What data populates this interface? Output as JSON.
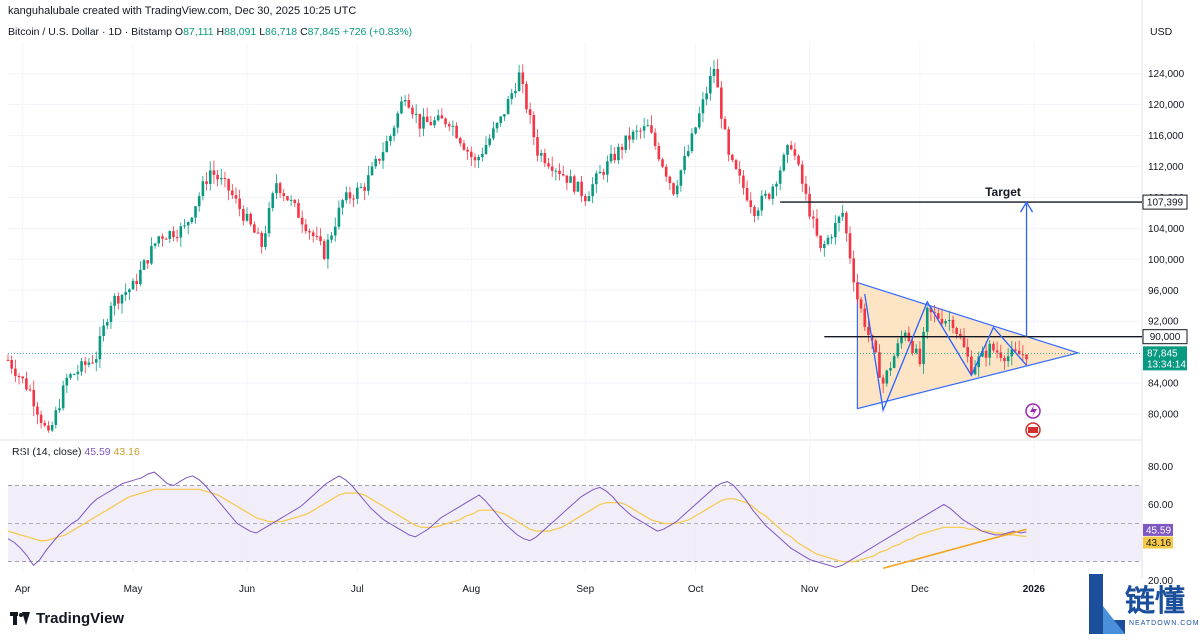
{
  "header": {
    "publisher": "kanguhalubale created with TradingView.com, Dec 30, 2025 10:25 UTC",
    "symbol": "Bitcoin / U.S. Dollar · 1D · Bitstamp",
    "o_label": "O",
    "o_value": "87,111",
    "h_label": "H",
    "h_value": "88,091",
    "l_label": "L",
    "l_value": "86,718",
    "c_label": "C",
    "c_value": "87,845",
    "change": "+726 (+0.83%)"
  },
  "currency": "USD",
  "rsi_header": {
    "label": "RSI (14, close)",
    "rsi_value": "45.59",
    "ma_value": "43.16"
  },
  "footer": {
    "logo_text": "TradingView"
  },
  "watermark": {
    "cn_text": "链懂",
    "en_text": "NEATDOWN.COM"
  },
  "colors": {
    "up": "#089981",
    "down": "#f23645",
    "rsi": "#7e57c2",
    "rsi_ma": "#f7c948",
    "pattern_fill": "#fce3c1",
    "pattern_line": "#2962ff",
    "trend": "#f7a21b"
  },
  "chart_data": [
    {
      "type": "candlestick",
      "title": "Bitcoin / U.S. Dollar · 1D · Bitstamp",
      "ylabel": "USD",
      "y_ticks": [
        124000,
        120000,
        116000,
        112000,
        108000,
        104000,
        100000,
        96000,
        92000,
        88000,
        84000,
        80000
      ],
      "ylim": [
        76900,
        128100
      ],
      "x_ticks": [
        "Apr",
        "May",
        "Jun",
        "Jul",
        "Aug",
        "Sep",
        "Oct",
        "Nov",
        "Dec",
        "2026"
      ],
      "price_path": {
        "start": "2025-03-28",
        "end": "2025-12-30",
        "anchors": [
          [
            "2025-03-28",
            87000
          ],
          [
            "2025-04-03",
            83000
          ],
          [
            "2025-04-08",
            77000
          ],
          [
            "2025-04-13",
            84500
          ],
          [
            "2025-04-21",
            87500
          ],
          [
            "2025-04-25",
            94500
          ],
          [
            "2025-05-01",
            96500
          ],
          [
            "2025-05-08",
            103000
          ],
          [
            "2025-05-15",
            104000
          ],
          [
            "2025-05-22",
            111500
          ],
          [
            "2025-05-27",
            109000
          ],
          [
            "2025-06-05",
            101800
          ],
          [
            "2025-06-09",
            110000
          ],
          [
            "2025-06-17",
            104500
          ],
          [
            "2025-06-22",
            100800
          ],
          [
            "2025-06-27",
            107500
          ],
          [
            "2025-07-03",
            109500
          ],
          [
            "2025-07-10",
            116000
          ],
          [
            "2025-07-14",
            121500
          ],
          [
            "2025-07-18",
            117500
          ],
          [
            "2025-07-26",
            118000
          ],
          [
            "2025-08-02",
            112500
          ],
          [
            "2025-08-09",
            118000
          ],
          [
            "2025-08-14",
            123800
          ],
          [
            "2025-08-19",
            114000
          ],
          [
            "2025-08-25",
            111500
          ],
          [
            "2025-09-01",
            108200
          ],
          [
            "2025-09-05",
            111000
          ],
          [
            "2025-09-13",
            115800
          ],
          [
            "2025-09-18",
            117000
          ],
          [
            "2025-09-25",
            109000
          ],
          [
            "2025-09-29",
            114000
          ],
          [
            "2025-10-06",
            124800
          ],
          [
            "2025-10-10",
            113000
          ],
          [
            "2025-10-17",
            106500
          ],
          [
            "2025-10-21",
            108500
          ],
          [
            "2025-10-27",
            115000
          ],
          [
            "2025-11-04",
            101000
          ],
          [
            "2025-11-10",
            106000
          ],
          [
            "2025-11-14",
            95000
          ],
          [
            "2025-11-21",
            84000
          ],
          [
            "2025-11-27",
            91000
          ],
          [
            "2025-12-01",
            86500
          ],
          [
            "2025-12-03",
            93000
          ],
          [
            "2025-12-10",
            92000
          ],
          [
            "2025-12-15",
            86000
          ],
          [
            "2025-12-20",
            88500
          ],
          [
            "2025-12-25",
            87500
          ],
          [
            "2025-12-30",
            87845
          ]
        ]
      },
      "last_price": {
        "value": 87845,
        "label": "87,845",
        "countdown": "13:34:14"
      },
      "horizontal_levels": [
        {
          "value": 107399,
          "label": "107,399",
          "annotation": "Target",
          "from": "2025-10-24"
        },
        {
          "value": 90000,
          "label": "90,000",
          "from": "2025-11-05"
        }
      ],
      "triangle_pattern": {
        "vertices": [
          [
            "2025-11-14",
            97000
          ],
          [
            "2025-11-14",
            80700
          ],
          [
            "2026-01-13",
            87900
          ]
        ],
        "zigzag": [
          [
            "2025-11-16",
            95500
          ],
          [
            "2025-11-21",
            80500
          ],
          [
            "2025-12-03",
            94500
          ],
          [
            "2025-12-15",
            85000
          ],
          [
            "2025-12-21",
            91200
          ],
          [
            "2025-12-30",
            86300
          ]
        ]
      },
      "target_arrow": {
        "date": "2025-12-30",
        "from_value": 90000,
        "to_value": 107399
      }
    },
    {
      "type": "line",
      "title": "RSI (14, close)",
      "ylim": [
        24,
        86
      ],
      "y_ticks": [
        80.0,
        60.0,
        40.0,
        20.0
      ],
      "band": [
        30,
        70
      ],
      "series": [
        {
          "name": "RSI",
          "values": [
            42,
            40,
            37,
            33,
            28,
            31,
            36,
            40,
            44,
            47,
            50,
            52,
            56,
            60,
            63,
            65,
            67,
            69,
            71,
            72,
            73,
            74,
            76,
            77,
            74,
            71,
            70,
            72,
            74,
            75,
            73,
            70,
            66,
            62,
            58,
            54,
            50,
            48,
            46,
            45,
            47,
            49,
            51,
            53,
            55,
            57,
            59,
            62,
            65,
            68,
            71,
            73,
            75,
            73,
            70,
            66,
            62,
            58,
            55,
            52,
            50,
            48,
            46,
            44,
            43,
            45,
            47,
            50,
            53,
            55,
            57,
            59,
            61,
            63,
            65,
            62,
            58,
            54,
            50,
            47,
            44,
            42,
            41,
            43,
            46,
            49,
            52,
            55,
            58,
            61,
            64,
            66,
            68,
            69,
            67,
            64,
            60,
            57,
            54,
            52,
            50,
            48,
            46,
            47,
            49,
            51,
            54,
            57,
            60,
            63,
            66,
            69,
            71,
            72,
            70,
            66,
            62,
            57,
            53,
            49,
            46,
            43,
            40,
            37,
            35,
            33,
            31,
            30,
            29,
            28,
            27,
            28,
            30,
            32,
            34,
            36,
            38,
            40,
            42,
            44,
            46,
            48,
            50,
            52,
            54,
            56,
            58,
            60,
            58,
            55,
            52,
            50,
            48,
            46,
            45,
            44,
            44,
            45,
            46,
            45,
            45.59
          ]
        },
        {
          "name": "RSI MA",
          "values": [
            46,
            45,
            44,
            43,
            42,
            41,
            41,
            42,
            43,
            44,
            46,
            48,
            50,
            52,
            54,
            56,
            58,
            60,
            62,
            64,
            65,
            66,
            67,
            68,
            68,
            68,
            68,
            68,
            68,
            68,
            68,
            67,
            66,
            65,
            63,
            61,
            59,
            57,
            55,
            53,
            52,
            51,
            51,
            51,
            52,
            53,
            54,
            55,
            57,
            59,
            61,
            63,
            65,
            66,
            66,
            66,
            65,
            63,
            61,
            59,
            57,
            55,
            53,
            51,
            49,
            48,
            48,
            48,
            49,
            50,
            51,
            52,
            54,
            55,
            57,
            57,
            57,
            56,
            55,
            53,
            51,
            49,
            47,
            46,
            46,
            46,
            47,
            48,
            50,
            52,
            54,
            56,
            58,
            60,
            61,
            61,
            61,
            60,
            58,
            56,
            54,
            52,
            51,
            50,
            50,
            50,
            51,
            52,
            54,
            56,
            58,
            60,
            62,
            63,
            63,
            62,
            61,
            59,
            56,
            54,
            51,
            48,
            45,
            43,
            40,
            38,
            36,
            34,
            33,
            32,
            31,
            30,
            30,
            30,
            31,
            32,
            33,
            35,
            36,
            38,
            39,
            41,
            42,
            44,
            45,
            46,
            47,
            48,
            48,
            48,
            48,
            47,
            47,
            46,
            46,
            45,
            45,
            44,
            44,
            43.5,
            43.16
          ]
        }
      ],
      "trendline": [
        [
          "2025-11-21",
          26.5
        ],
        [
          "2025-12-30",
          47
        ]
      ]
    }
  ]
}
